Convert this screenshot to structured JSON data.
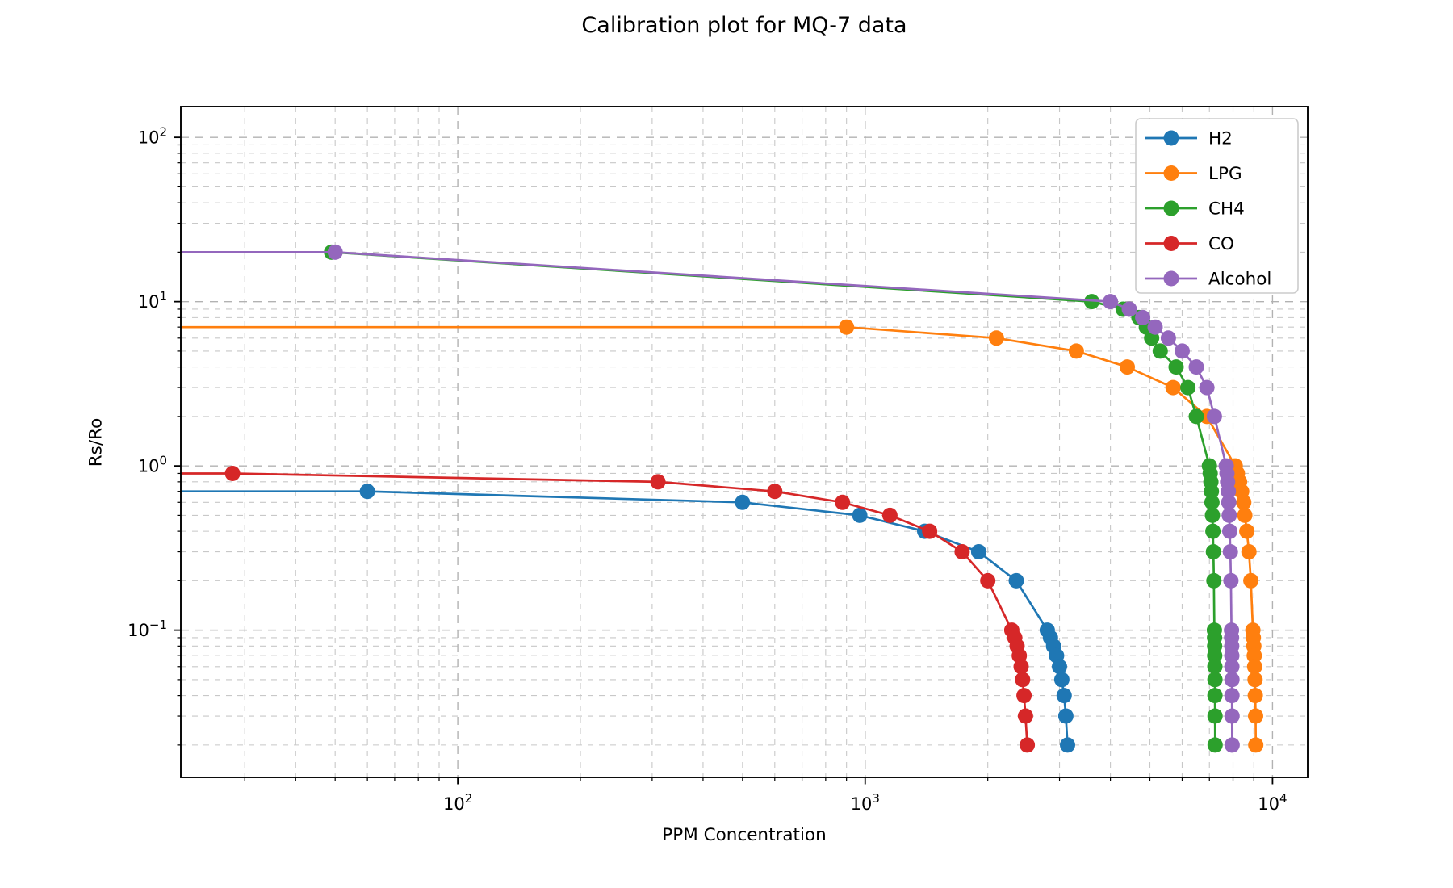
{
  "chart_data": {
    "type": "line",
    "title": "Calibration plot for MQ-7 data",
    "xlabel": "PPM Concentration",
    "ylabel": "Rs/Ro",
    "x_scale": "log",
    "y_scale": "log",
    "xlim": [
      20.9,
      12200
    ],
    "ylim": [
      0.0127,
      154
    ],
    "grid": {
      "which": "both",
      "style": "dashed",
      "major_color": "#b2b2b2",
      "minor_color": "#c8c8c8"
    },
    "axes_color": "#000000",
    "x_major_ticks": [
      {
        "value": 100,
        "label_base": "10",
        "label_exp": "2"
      },
      {
        "value": 1000,
        "label_base": "10",
        "label_exp": "3"
      },
      {
        "value": 10000,
        "label_base": "10",
        "label_exp": "4"
      }
    ],
    "y_major_ticks": [
      {
        "value": 100,
        "label_base": "10",
        "label_exp": "2"
      },
      {
        "value": 10,
        "label_base": "10",
        "label_exp": "1"
      },
      {
        "value": 1,
        "label_base": "10",
        "label_exp": "0"
      },
      {
        "value": 0.1,
        "label_base": "10",
        "label_exp": "−1"
      }
    ],
    "legend": {
      "position": "upper right",
      "entries": [
        "H2",
        "LPG",
        "CH4",
        "CO",
        "Alcohol"
      ]
    },
    "series": [
      {
        "name": "H2",
        "color": "#1f77b4",
        "starts_flat_from_left_edge": true,
        "points": [
          [
            60,
            0.7
          ],
          [
            500,
            0.6
          ],
          [
            970,
            0.5
          ],
          [
            1400,
            0.4
          ],
          [
            1900,
            0.3
          ],
          [
            2350,
            0.2
          ],
          [
            2800,
            0.1
          ],
          [
            2850,
            0.09
          ],
          [
            2900,
            0.08
          ],
          [
            2950,
            0.07
          ],
          [
            3000,
            0.06
          ],
          [
            3040,
            0.05
          ],
          [
            3080,
            0.04
          ],
          [
            3110,
            0.03
          ],
          [
            3140,
            0.02
          ]
        ]
      },
      {
        "name": "LPG",
        "color": "#ff7f0e",
        "starts_flat_from_left_edge": true,
        "points": [
          [
            900,
            7
          ],
          [
            2100,
            6
          ],
          [
            3300,
            5
          ],
          [
            4400,
            4
          ],
          [
            5700,
            3
          ],
          [
            6900,
            2
          ],
          [
            8100,
            1
          ],
          [
            8200,
            0.9
          ],
          [
            8300,
            0.8
          ],
          [
            8400,
            0.7
          ],
          [
            8500,
            0.6
          ],
          [
            8550,
            0.5
          ],
          [
            8650,
            0.4
          ],
          [
            8750,
            0.3
          ],
          [
            8850,
            0.2
          ],
          [
            8950,
            0.1
          ],
          [
            8975,
            0.09
          ],
          [
            9000,
            0.08
          ],
          [
            9020,
            0.07
          ],
          [
            9040,
            0.06
          ],
          [
            9060,
            0.05
          ],
          [
            9075,
            0.04
          ],
          [
            9090,
            0.03
          ],
          [
            9100,
            0.02
          ]
        ]
      },
      {
        "name": "CH4",
        "color": "#2ca02c",
        "starts_flat_from_left_edge": true,
        "points": [
          [
            49,
            20
          ],
          [
            3600,
            10
          ],
          [
            4300,
            9
          ],
          [
            4700,
            8
          ],
          [
            4900,
            7
          ],
          [
            5050,
            6
          ],
          [
            5300,
            5
          ],
          [
            5800,
            4
          ],
          [
            6200,
            3
          ],
          [
            6500,
            2
          ],
          [
            7000,
            1
          ],
          [
            7030,
            0.9
          ],
          [
            7060,
            0.8
          ],
          [
            7080,
            0.7
          ],
          [
            7100,
            0.6
          ],
          [
            7120,
            0.5
          ],
          [
            7140,
            0.4
          ],
          [
            7160,
            0.3
          ],
          [
            7180,
            0.2
          ],
          [
            7200,
            0.1
          ],
          [
            7205,
            0.09
          ],
          [
            7210,
            0.08
          ],
          [
            7214,
            0.07
          ],
          [
            7218,
            0.06
          ],
          [
            7221,
            0.05
          ],
          [
            7224,
            0.04
          ],
          [
            7227,
            0.03
          ],
          [
            7230,
            0.02
          ]
        ]
      },
      {
        "name": "CO",
        "color": "#d62728",
        "starts_flat_from_left_edge": true,
        "points": [
          [
            28,
            0.9
          ],
          [
            310,
            0.8
          ],
          [
            600,
            0.7
          ],
          [
            880,
            0.6
          ],
          [
            1150,
            0.5
          ],
          [
            1440,
            0.4
          ],
          [
            1730,
            0.3
          ],
          [
            2000,
            0.2
          ],
          [
            2290,
            0.1
          ],
          [
            2330,
            0.09
          ],
          [
            2360,
            0.08
          ],
          [
            2390,
            0.07
          ],
          [
            2415,
            0.06
          ],
          [
            2435,
            0.05
          ],
          [
            2455,
            0.04
          ],
          [
            2475,
            0.03
          ],
          [
            2500,
            0.02
          ]
        ]
      },
      {
        "name": "Alcohol",
        "color": "#9467bd",
        "starts_flat_from_left_edge": true,
        "points": [
          [
            50,
            20
          ],
          [
            4000,
            10
          ],
          [
            4450,
            9
          ],
          [
            4800,
            8
          ],
          [
            5150,
            7
          ],
          [
            5550,
            6
          ],
          [
            6000,
            5
          ],
          [
            6500,
            4
          ],
          [
            6900,
            3
          ],
          [
            7200,
            2
          ],
          [
            7700,
            1
          ],
          [
            7730,
            0.9
          ],
          [
            7760,
            0.8
          ],
          [
            7790,
            0.7
          ],
          [
            7810,
            0.6
          ],
          [
            7830,
            0.5
          ],
          [
            7855,
            0.4
          ],
          [
            7880,
            0.3
          ],
          [
            7905,
            0.2
          ],
          [
            7930,
            0.1
          ],
          [
            7935,
            0.09
          ],
          [
            7940,
            0.08
          ],
          [
            7944,
            0.07
          ],
          [
            7948,
            0.06
          ],
          [
            7951,
            0.05
          ],
          [
            7954,
            0.04
          ],
          [
            7957,
            0.03
          ],
          [
            7960,
            0.02
          ]
        ]
      }
    ]
  }
}
